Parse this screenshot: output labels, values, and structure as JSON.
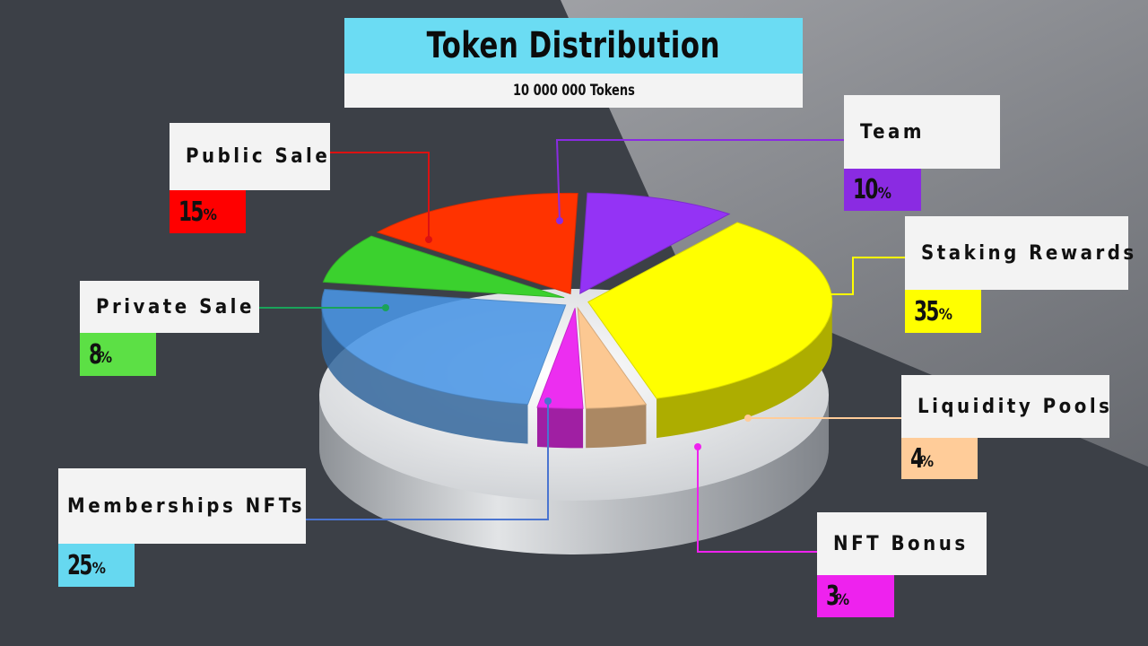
{
  "title": "Token Distribution",
  "subtitle": "10 000 000 Tokens",
  "chart_data": {
    "type": "pie",
    "title": "Token Distribution",
    "subtitle": "10 000 000 Tokens",
    "unit": "%",
    "slices": [
      {
        "name": "Team",
        "value": 10,
        "color": "#9433f5"
      },
      {
        "name": "Staking Rewards",
        "value": 35,
        "color": "#ffff00"
      },
      {
        "name": "Liquidity Pools",
        "value": 4,
        "color": "#fcc892"
      },
      {
        "name": "NFT Bonus",
        "value": 3,
        "color": "#ec2ef0"
      },
      {
        "name": "Memberships NFTs",
        "value": 25,
        "color": "#4a96e6"
      },
      {
        "name": "Private Sale",
        "value": 8,
        "color": "#3bd12e"
      },
      {
        "name": "Public Sale",
        "value": 15,
        "color": "#ff3300"
      }
    ]
  },
  "labels": {
    "team": {
      "label": "Team",
      "value": "10",
      "unit": "%"
    },
    "staking": {
      "label": "Staking Rewards",
      "value": "35",
      "unit": "%"
    },
    "liquidity": {
      "label": "Liquidity Pools",
      "value": "4",
      "unit": "%"
    },
    "nft_bonus": {
      "label": "NFT Bonus",
      "value": "3",
      "unit": "%"
    },
    "memberships": {
      "label": "Memberships NFTs",
      "value": "25",
      "unit": "%"
    },
    "private": {
      "label": "Private Sale",
      "value": "8",
      "unit": "%"
    },
    "public": {
      "label": "Public Sale",
      "value": "15",
      "unit": "%"
    }
  },
  "colors": {
    "team": "#8a2be2",
    "staking": "#ffff00",
    "liquidity": "#ffcc99",
    "nft_bonus": "#ee22ee",
    "memberships": "#66d8f0",
    "private": "#5ce045",
    "public": "#ff0000"
  }
}
